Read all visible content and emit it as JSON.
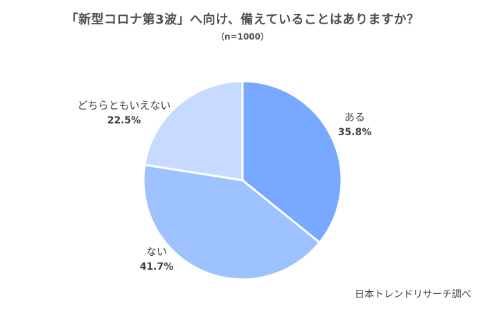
{
  "chart_data": {
    "type": "pie",
    "title": "「新型コロナ第3波」へ向け、備えていることはありますか？",
    "subtitle": "（n=1000）",
    "categories": [
      "ある",
      "ない",
      "どちらともいえない"
    ],
    "values": [
      35.8,
      41.7,
      22.5
    ],
    "value_labels": [
      "35.8%",
      "41.7%",
      "22.5%"
    ],
    "colors": [
      "#78A8FF",
      "#9EC2FF",
      "#C6DBFF"
    ],
    "start": "12 o'clock",
    "direction": "clockwise"
  },
  "source": "日本トレンドリサーチ調べ"
}
